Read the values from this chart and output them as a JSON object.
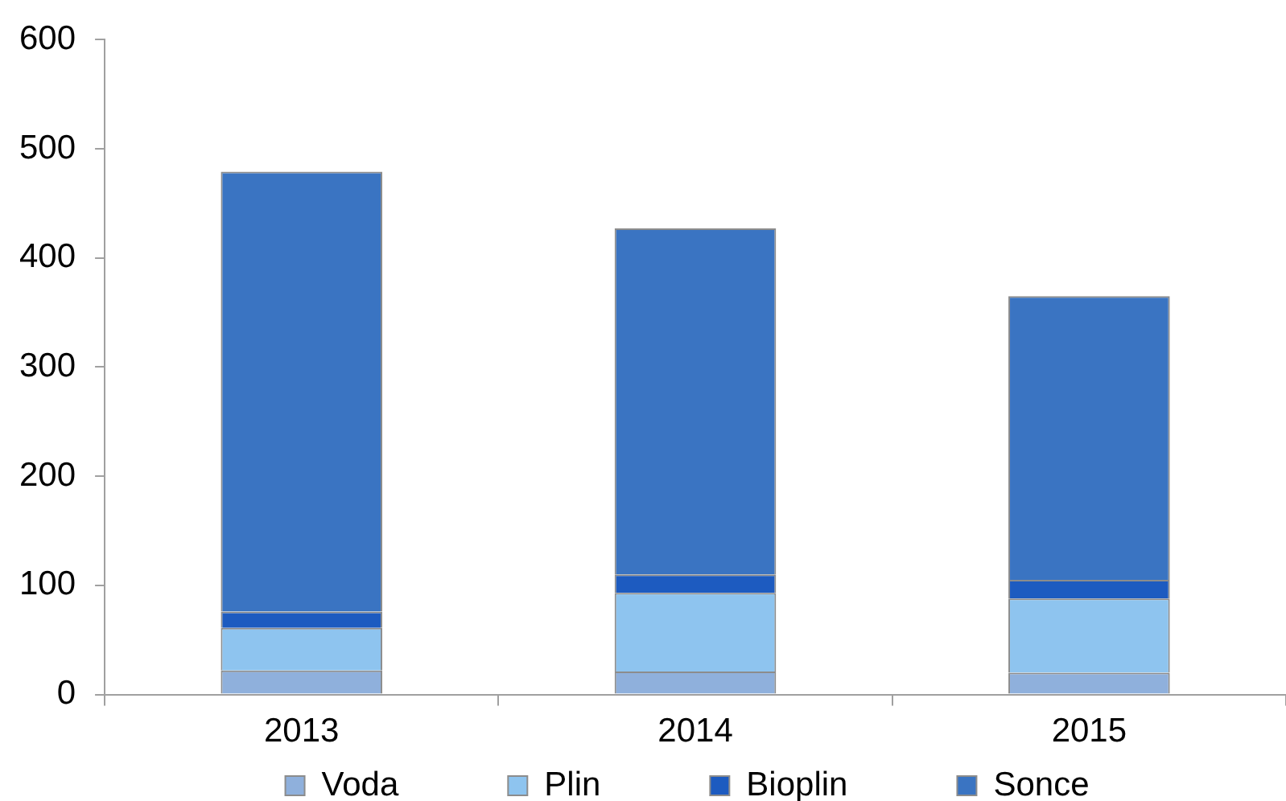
{
  "chart_data": {
    "type": "bar",
    "stacked": true,
    "categories": [
      "2013",
      "2014",
      "2015"
    ],
    "series": [
      {
        "name": "Voda",
        "color": "#8fb0dc",
        "values": [
          22,
          21,
          20
        ]
      },
      {
        "name": "Plin",
        "color": "#8ec4ef",
        "values": [
          39,
          72,
          68
        ]
      },
      {
        "name": "Bioplin",
        "color": "#1d5bc0",
        "values": [
          15,
          17,
          17
        ]
      },
      {
        "name": "Sonce",
        "color": "#3a74c2",
        "values": [
          403,
          317,
          260
        ]
      }
    ],
    "ylim": [
      0,
      600
    ],
    "yticks": [
      0,
      100,
      200,
      300,
      400,
      500,
      600
    ],
    "legend": "bottom",
    "grid": false
  }
}
